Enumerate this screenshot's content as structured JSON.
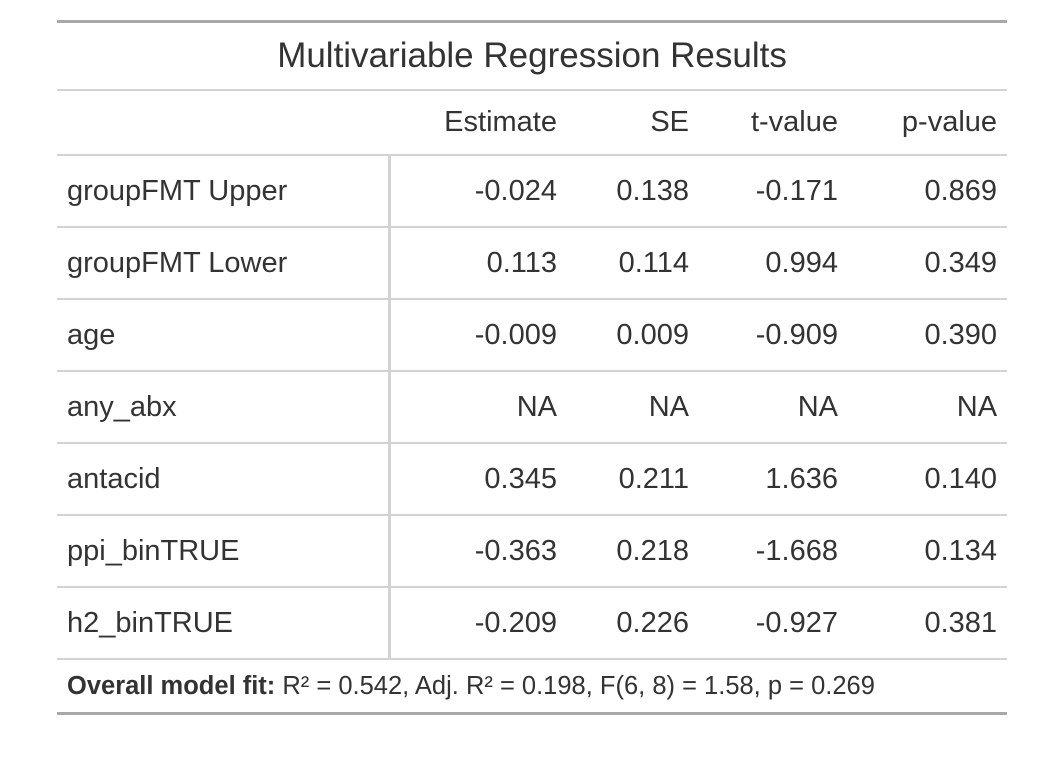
{
  "title": "Multivariable Regression Results",
  "columns": {
    "stub": "",
    "estimate": "Estimate",
    "se": "SE",
    "t_value": "t-value",
    "p_value": "p-value"
  },
  "rows": [
    {
      "term": "groupFMT Upper",
      "estimate": "-0.024",
      "se": "0.138",
      "t_value": "-0.171",
      "p_value": "0.869"
    },
    {
      "term": "groupFMT Lower",
      "estimate": "0.113",
      "se": "0.114",
      "t_value": "0.994",
      "p_value": "0.349"
    },
    {
      "term": "age",
      "estimate": "-0.009",
      "se": "0.009",
      "t_value": "-0.909",
      "p_value": "0.390"
    },
    {
      "term": "any_abx",
      "estimate": "NA",
      "se": "NA",
      "t_value": "NA",
      "p_value": "NA"
    },
    {
      "term": "antacid",
      "estimate": "0.345",
      "se": "0.211",
      "t_value": "1.636",
      "p_value": "0.140"
    },
    {
      "term": "ppi_binTRUE",
      "estimate": "-0.363",
      "se": "0.218",
      "t_value": "-1.668",
      "p_value": "0.134"
    },
    {
      "term": "h2_binTRUE",
      "estimate": "-0.209",
      "se": "0.226",
      "t_value": "-0.927",
      "p_value": "0.381"
    }
  ],
  "footnote": {
    "label": "Overall model fit:",
    "text": " R² = 0.542, Adj. R² = 0.198, F(6, 8) = 1.58, p = 0.269"
  }
}
